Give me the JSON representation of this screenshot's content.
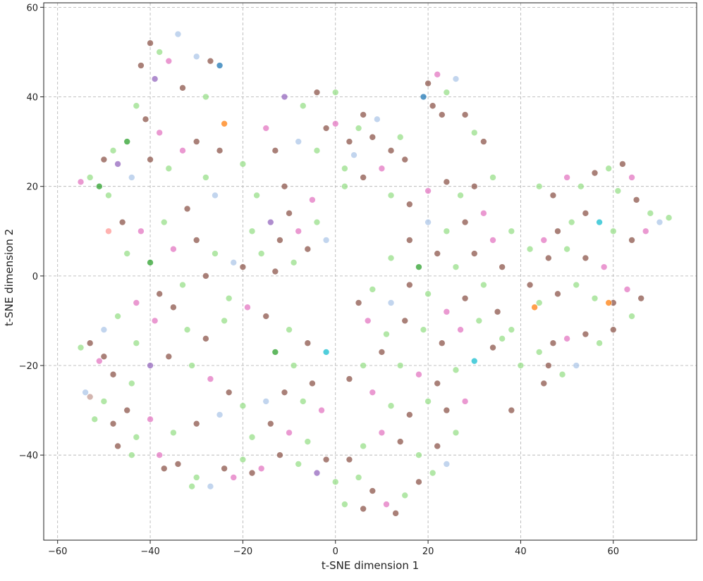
{
  "chart_data": {
    "type": "scatter",
    "title": "",
    "xlabel": "t-SNE dimension 1",
    "ylabel": "t-SNE dimension 2",
    "xlim": [
      -63,
      78
    ],
    "ylim": [
      -59,
      61
    ],
    "xticks": [
      -60,
      -40,
      -20,
      0,
      20,
      40,
      60
    ],
    "yticks": [
      -40,
      -20,
      0,
      20,
      40,
      60
    ],
    "tick_labels_x": [
      "−60",
      "−40",
      "−20",
      "0",
      "20",
      "40",
      "60"
    ],
    "tick_labels_y": [
      "−40",
      "−20",
      "0",
      "20",
      "40",
      "60"
    ],
    "grid": true,
    "legend": "none",
    "point_alpha": 0.75,
    "palette": [
      "#98df8a",
      "#8c564b",
      "#e377c2",
      "#aec7e8",
      "#2ca02c",
      "#9467bd",
      "#17becf",
      "#1f77b4",
      "#ff7f0e",
      "#c49c94",
      "#ff9896",
      "#bcbd22"
    ],
    "approx_point_count": 2400,
    "point_color_index_note": "c = index into palette",
    "points": [
      {
        "x": -40,
        "y": 52,
        "c": 1
      },
      {
        "x": -38,
        "y": 50,
        "c": 0
      },
      {
        "x": -36,
        "y": 48,
        "c": 2
      },
      {
        "x": -34,
        "y": 54,
        "c": 3
      },
      {
        "x": -42,
        "y": 47,
        "c": 1
      },
      {
        "x": -30,
        "y": 49,
        "c": 3
      },
      {
        "x": -27,
        "y": 48,
        "c": 1
      },
      {
        "x": -25,
        "y": 47,
        "c": 7
      },
      {
        "x": -24,
        "y": 34,
        "c": 8
      },
      {
        "x": -39,
        "y": 44,
        "c": 5
      },
      {
        "x": -43,
        "y": 38,
        "c": 0
      },
      {
        "x": -41,
        "y": 35,
        "c": 1
      },
      {
        "x": -38,
        "y": 32,
        "c": 2
      },
      {
        "x": -45,
        "y": 30,
        "c": 4
      },
      {
        "x": -48,
        "y": 28,
        "c": 0
      },
      {
        "x": -50,
        "y": 26,
        "c": 1
      },
      {
        "x": -53,
        "y": 22,
        "c": 0
      },
      {
        "x": -55,
        "y": 21,
        "c": 2
      },
      {
        "x": -51,
        "y": 20,
        "c": 4
      },
      {
        "x": -49,
        "y": 18,
        "c": 0
      },
      {
        "x": -47,
        "y": 25,
        "c": 5
      },
      {
        "x": -44,
        "y": 22,
        "c": 3
      },
      {
        "x": -40,
        "y": 26,
        "c": 1
      },
      {
        "x": -36,
        "y": 24,
        "c": 0
      },
      {
        "x": -33,
        "y": 28,
        "c": 2
      },
      {
        "x": -30,
        "y": 30,
        "c": 1
      },
      {
        "x": -28,
        "y": 22,
        "c": 0
      },
      {
        "x": -26,
        "y": 18,
        "c": 3
      },
      {
        "x": -32,
        "y": 15,
        "c": 1
      },
      {
        "x": -37,
        "y": 12,
        "c": 0
      },
      {
        "x": -42,
        "y": 10,
        "c": 2
      },
      {
        "x": -46,
        "y": 12,
        "c": 1
      },
      {
        "x": -49,
        "y": 10,
        "c": 10
      },
      {
        "x": -45,
        "y": 5,
        "c": 0
      },
      {
        "x": -40,
        "y": 3,
        "c": 4
      },
      {
        "x": -35,
        "y": 6,
        "c": 2
      },
      {
        "x": -30,
        "y": 8,
        "c": 1
      },
      {
        "x": -26,
        "y": 5,
        "c": 0
      },
      {
        "x": -22,
        "y": 3,
        "c": 3
      },
      {
        "x": -28,
        "y": 0,
        "c": 1
      },
      {
        "x": -33,
        "y": -2,
        "c": 0
      },
      {
        "x": -38,
        "y": -4,
        "c": 1
      },
      {
        "x": -43,
        "y": -6,
        "c": 2
      },
      {
        "x": -47,
        "y": -9,
        "c": 0
      },
      {
        "x": -50,
        "y": -12,
        "c": 3
      },
      {
        "x": -53,
        "y": -15,
        "c": 1
      },
      {
        "x": -55,
        "y": -16,
        "c": 0
      },
      {
        "x": -51,
        "y": -19,
        "c": 2
      },
      {
        "x": -48,
        "y": -22,
        "c": 1
      },
      {
        "x": -44,
        "y": -24,
        "c": 0
      },
      {
        "x": -40,
        "y": -20,
        "c": 5
      },
      {
        "x": -36,
        "y": -18,
        "c": 1
      },
      {
        "x": -31,
        "y": -20,
        "c": 0
      },
      {
        "x": -27,
        "y": -23,
        "c": 2
      },
      {
        "x": -23,
        "y": -26,
        "c": 1
      },
      {
        "x": -20,
        "y": -29,
        "c": 0
      },
      {
        "x": -25,
        "y": -31,
        "c": 3
      },
      {
        "x": -30,
        "y": -33,
        "c": 1
      },
      {
        "x": -35,
        "y": -35,
        "c": 0
      },
      {
        "x": -40,
        "y": -32,
        "c": 2
      },
      {
        "x": -45,
        "y": -30,
        "c": 1
      },
      {
        "x": -50,
        "y": -28,
        "c": 0
      },
      {
        "x": -53,
        "y": -27,
        "c": 9
      },
      {
        "x": -48,
        "y": -33,
        "c": 1
      },
      {
        "x": -43,
        "y": -36,
        "c": 0
      },
      {
        "x": -38,
        "y": -40,
        "c": 2
      },
      {
        "x": -34,
        "y": -42,
        "c": 1
      },
      {
        "x": -30,
        "y": -45,
        "c": 0
      },
      {
        "x": -27,
        "y": -47,
        "c": 3
      },
      {
        "x": -24,
        "y": -43,
        "c": 1
      },
      {
        "x": -20,
        "y": -41,
        "c": 0
      },
      {
        "x": -16,
        "y": -43,
        "c": 2
      },
      {
        "x": -12,
        "y": -40,
        "c": 1
      },
      {
        "x": -8,
        "y": -42,
        "c": 0
      },
      {
        "x": -4,
        "y": -44,
        "c": 5
      },
      {
        "x": -2,
        "y": -41,
        "c": 1
      },
      {
        "x": -6,
        "y": -37,
        "c": 0
      },
      {
        "x": -10,
        "y": -35,
        "c": 2
      },
      {
        "x": -14,
        "y": -33,
        "c": 1
      },
      {
        "x": -18,
        "y": -36,
        "c": 0
      },
      {
        "x": -15,
        "y": -28,
        "c": 3
      },
      {
        "x": -11,
        "y": -26,
        "c": 1
      },
      {
        "x": -7,
        "y": -28,
        "c": 0
      },
      {
        "x": -3,
        "y": -30,
        "c": 2
      },
      {
        "x": -5,
        "y": -24,
        "c": 1
      },
      {
        "x": -9,
        "y": -20,
        "c": 0
      },
      {
        "x": -13,
        "y": -17,
        "c": 4
      },
      {
        "x": -6,
        "y": -15,
        "c": 1
      },
      {
        "x": -2,
        "y": -17,
        "c": 6
      },
      {
        "x": -10,
        "y": -12,
        "c": 0
      },
      {
        "x": -15,
        "y": -9,
        "c": 1
      },
      {
        "x": -19,
        "y": -7,
        "c": 2
      },
      {
        "x": -23,
        "y": -5,
        "c": 0
      },
      {
        "x": -20,
        "y": 2,
        "c": 1
      },
      {
        "x": -16,
        "y": 5,
        "c": 0
      },
      {
        "x": -12,
        "y": 8,
        "c": 1
      },
      {
        "x": -8,
        "y": 10,
        "c": 2
      },
      {
        "x": -4,
        "y": 12,
        "c": 0
      },
      {
        "x": -10,
        "y": 14,
        "c": 1
      },
      {
        "x": -14,
        "y": 12,
        "c": 5
      },
      {
        "x": -18,
        "y": 10,
        "c": 0
      },
      {
        "x": -6,
        "y": 6,
        "c": 1
      },
      {
        "x": -2,
        "y": 8,
        "c": 3
      },
      {
        "x": -9,
        "y": 3,
        "c": 0
      },
      {
        "x": -13,
        "y": 1,
        "c": 1
      },
      {
        "x": -17,
        "y": 18,
        "c": 0
      },
      {
        "x": -11,
        "y": 20,
        "c": 1
      },
      {
        "x": -5,
        "y": 17,
        "c": 2
      },
      {
        "x": -20,
        "y": 25,
        "c": 0
      },
      {
        "x": -13,
        "y": 28,
        "c": 1
      },
      {
        "x": -8,
        "y": 30,
        "c": 3
      },
      {
        "x": -4,
        "y": 28,
        "c": 0
      },
      {
        "x": -2,
        "y": 33,
        "c": 1
      },
      {
        "x": -7,
        "y": 38,
        "c": 0
      },
      {
        "x": -11,
        "y": 40,
        "c": 5
      },
      {
        "x": -4,
        "y": 41,
        "c": 1
      },
      {
        "x": 0,
        "y": 41,
        "c": 0
      },
      {
        "x": -15,
        "y": 33,
        "c": 2
      },
      {
        "x": -25,
        "y": 28,
        "c": 1
      },
      {
        "x": -28,
        "y": 40,
        "c": 0
      },
      {
        "x": -33,
        "y": 42,
        "c": 1
      },
      {
        "x": 0,
        "y": 34,
        "c": 2
      },
      {
        "x": 3,
        "y": 30,
        "c": 1
      },
      {
        "x": 5,
        "y": 33,
        "c": 0
      },
      {
        "x": 8,
        "y": 31,
        "c": 1
      },
      {
        "x": 4,
        "y": 27,
        "c": 3
      },
      {
        "x": 2,
        "y": 24,
        "c": 0
      },
      {
        "x": 6,
        "y": 22,
        "c": 1
      },
      {
        "x": 10,
        "y": 24,
        "c": 2
      },
      {
        "x": 12,
        "y": 28,
        "c": 1
      },
      {
        "x": 14,
        "y": 31,
        "c": 0
      },
      {
        "x": 15,
        "y": 26,
        "c": 1
      },
      {
        "x": 9,
        "y": 35,
        "c": 3
      },
      {
        "x": 6,
        "y": 36,
        "c": 1
      },
      {
        "x": 2,
        "y": 20,
        "c": 0
      },
      {
        "x": 20,
        "y": 43,
        "c": 1
      },
      {
        "x": 22,
        "y": 45,
        "c": 2
      },
      {
        "x": 24,
        "y": 41,
        "c": 0
      },
      {
        "x": 21,
        "y": 38,
        "c": 1
      },
      {
        "x": 26,
        "y": 44,
        "c": 3
      },
      {
        "x": 19,
        "y": 40,
        "c": 7
      },
      {
        "x": 23,
        "y": 36,
        "c": 1
      },
      {
        "x": 28,
        "y": 36,
        "c": 1
      },
      {
        "x": 30,
        "y": 32,
        "c": 0
      },
      {
        "x": 32,
        "y": 30,
        "c": 1
      },
      {
        "x": 12,
        "y": 18,
        "c": 0
      },
      {
        "x": 16,
        "y": 16,
        "c": 1
      },
      {
        "x": 20,
        "y": 19,
        "c": 2
      },
      {
        "x": 24,
        "y": 21,
        "c": 1
      },
      {
        "x": 27,
        "y": 18,
        "c": 0
      },
      {
        "x": 30,
        "y": 20,
        "c": 1
      },
      {
        "x": 34,
        "y": 22,
        "c": 0
      },
      {
        "x": 32,
        "y": 14,
        "c": 2
      },
      {
        "x": 28,
        "y": 12,
        "c": 1
      },
      {
        "x": 24,
        "y": 10,
        "c": 0
      },
      {
        "x": 20,
        "y": 12,
        "c": 3
      },
      {
        "x": 16,
        "y": 8,
        "c": 1
      },
      {
        "x": 12,
        "y": 4,
        "c": 0
      },
      {
        "x": 18,
        "y": 2,
        "c": 4
      },
      {
        "x": 22,
        "y": 5,
        "c": 1
      },
      {
        "x": 26,
        "y": 2,
        "c": 0
      },
      {
        "x": 30,
        "y": 5,
        "c": 1
      },
      {
        "x": 34,
        "y": 8,
        "c": 2
      },
      {
        "x": 38,
        "y": 10,
        "c": 0
      },
      {
        "x": 36,
        "y": 2,
        "c": 1
      },
      {
        "x": 32,
        "y": -2,
        "c": 0
      },
      {
        "x": 28,
        "y": -5,
        "c": 1
      },
      {
        "x": 24,
        "y": -8,
        "c": 2
      },
      {
        "x": 20,
        "y": -4,
        "c": 0
      },
      {
        "x": 16,
        "y": -2,
        "c": 1
      },
      {
        "x": 12,
        "y": -6,
        "c": 3
      },
      {
        "x": 8,
        "y": -3,
        "c": 0
      },
      {
        "x": 5,
        "y": -6,
        "c": 1
      },
      {
        "x": 7,
        "y": -10,
        "c": 2
      },
      {
        "x": 11,
        "y": -13,
        "c": 0
      },
      {
        "x": 15,
        "y": -10,
        "c": 1
      },
      {
        "x": 19,
        "y": -12,
        "c": 0
      },
      {
        "x": 23,
        "y": -15,
        "c": 1
      },
      {
        "x": 27,
        "y": -12,
        "c": 2
      },
      {
        "x": 31,
        "y": -10,
        "c": 0
      },
      {
        "x": 35,
        "y": -8,
        "c": 1
      },
      {
        "x": 38,
        "y": -12,
        "c": 0
      },
      {
        "x": 34,
        "y": -16,
        "c": 1
      },
      {
        "x": 30,
        "y": -19,
        "c": 6
      },
      {
        "x": 26,
        "y": -21,
        "c": 0
      },
      {
        "x": 22,
        "y": -24,
        "c": 1
      },
      {
        "x": 18,
        "y": -22,
        "c": 2
      },
      {
        "x": 14,
        "y": -20,
        "c": 0
      },
      {
        "x": 10,
        "y": -17,
        "c": 1
      },
      {
        "x": 6,
        "y": -20,
        "c": 0
      },
      {
        "x": 3,
        "y": -23,
        "c": 1
      },
      {
        "x": 8,
        "y": -26,
        "c": 2
      },
      {
        "x": 12,
        "y": -29,
        "c": 0
      },
      {
        "x": 16,
        "y": -31,
        "c": 1
      },
      {
        "x": 20,
        "y": -28,
        "c": 0
      },
      {
        "x": 24,
        "y": -30,
        "c": 1
      },
      {
        "x": 28,
        "y": -28,
        "c": 2
      },
      {
        "x": 26,
        "y": -35,
        "c": 0
      },
      {
        "x": 22,
        "y": -38,
        "c": 1
      },
      {
        "x": 18,
        "y": -40,
        "c": 0
      },
      {
        "x": 14,
        "y": -37,
        "c": 1
      },
      {
        "x": 10,
        "y": -35,
        "c": 2
      },
      {
        "x": 6,
        "y": -38,
        "c": 0
      },
      {
        "x": 3,
        "y": -41,
        "c": 1
      },
      {
        "x": 5,
        "y": -45,
        "c": 0
      },
      {
        "x": 8,
        "y": -48,
        "c": 1
      },
      {
        "x": 11,
        "y": -51,
        "c": 2
      },
      {
        "x": 13,
        "y": -53,
        "c": 1
      },
      {
        "x": 15,
        "y": -49,
        "c": 0
      },
      {
        "x": 18,
        "y": -46,
        "c": 1
      },
      {
        "x": 21,
        "y": -44,
        "c": 0
      },
      {
        "x": 24,
        "y": -42,
        "c": 3
      },
      {
        "x": 2,
        "y": -51,
        "c": 0
      },
      {
        "x": 6,
        "y": -52,
        "c": 1
      },
      {
        "x": 0,
        "y": -46,
        "c": 0
      },
      {
        "x": 44,
        "y": 20,
        "c": 0
      },
      {
        "x": 47,
        "y": 18,
        "c": 1
      },
      {
        "x": 50,
        "y": 22,
        "c": 2
      },
      {
        "x": 53,
        "y": 20,
        "c": 0
      },
      {
        "x": 56,
        "y": 23,
        "c": 1
      },
      {
        "x": 59,
        "y": 24,
        "c": 0
      },
      {
        "x": 62,
        "y": 25,
        "c": 1
      },
      {
        "x": 64,
        "y": 22,
        "c": 2
      },
      {
        "x": 61,
        "y": 19,
        "c": 0
      },
      {
        "x": 65,
        "y": 17,
        "c": 1
      },
      {
        "x": 68,
        "y": 14,
        "c": 0
      },
      {
        "x": 70,
        "y": 12,
        "c": 3
      },
      {
        "x": 72,
        "y": 13,
        "c": 0
      },
      {
        "x": 67,
        "y": 10,
        "c": 2
      },
      {
        "x": 64,
        "y": 8,
        "c": 1
      },
      {
        "x": 60,
        "y": 10,
        "c": 0
      },
      {
        "x": 57,
        "y": 12,
        "c": 6
      },
      {
        "x": 54,
        "y": 14,
        "c": 1
      },
      {
        "x": 51,
        "y": 12,
        "c": 0
      },
      {
        "x": 48,
        "y": 10,
        "c": 1
      },
      {
        "x": 45,
        "y": 8,
        "c": 2
      },
      {
        "x": 42,
        "y": 6,
        "c": 0
      },
      {
        "x": 46,
        "y": 4,
        "c": 1
      },
      {
        "x": 50,
        "y": 6,
        "c": 0
      },
      {
        "x": 54,
        "y": 4,
        "c": 1
      },
      {
        "x": 58,
        "y": 2,
        "c": 2
      },
      {
        "x": 52,
        "y": -2,
        "c": 0
      },
      {
        "x": 48,
        "y": -4,
        "c": 1
      },
      {
        "x": 44,
        "y": -6,
        "c": 0
      },
      {
        "x": 42,
        "y": -2,
        "c": 1
      },
      {
        "x": 56,
        "y": -5,
        "c": 0
      },
      {
        "x": 60,
        "y": -6,
        "c": 1
      },
      {
        "x": 63,
        "y": -3,
        "c": 2
      },
      {
        "x": 66,
        "y": -5,
        "c": 1
      },
      {
        "x": 64,
        "y": -9,
        "c": 0
      },
      {
        "x": 60,
        "y": -12,
        "c": 1
      },
      {
        "x": 57,
        "y": -15,
        "c": 0
      },
      {
        "x": 54,
        "y": -13,
        "c": 1
      },
      {
        "x": 50,
        "y": -14,
        "c": 2
      },
      {
        "x": 47,
        "y": -15,
        "c": 1
      },
      {
        "x": 44,
        "y": -17,
        "c": 0
      },
      {
        "x": 46,
        "y": -20,
        "c": 1
      },
      {
        "x": 49,
        "y": -22,
        "c": 0
      },
      {
        "x": 52,
        "y": -20,
        "c": 3
      },
      {
        "x": 45,
        "y": -24,
        "c": 1
      },
      {
        "x": 40,
        "y": -20,
        "c": 0
      },
      {
        "x": 38,
        "y": -30,
        "c": 1
      },
      {
        "x": 43,
        "y": -7,
        "c": 8
      },
      {
        "x": 59,
        "y": -6,
        "c": 8
      },
      {
        "x": 36,
        "y": -14,
        "c": 0
      },
      {
        "x": -37,
        "y": -43,
        "c": 1
      },
      {
        "x": -31,
        "y": -47,
        "c": 0
      },
      {
        "x": -22,
        "y": -45,
        "c": 2
      },
      {
        "x": -18,
        "y": -44,
        "c": 1
      },
      {
        "x": -44,
        "y": -40,
        "c": 0
      },
      {
        "x": -47,
        "y": -38,
        "c": 1
      },
      {
        "x": -52,
        "y": -32,
        "c": 0
      },
      {
        "x": -54,
        "y": -26,
        "c": 3
      },
      {
        "x": -50,
        "y": -18,
        "c": 1
      },
      {
        "x": -43,
        "y": -15,
        "c": 0
      },
      {
        "x": -39,
        "y": -10,
        "c": 2
      },
      {
        "x": -35,
        "y": -7,
        "c": 1
      },
      {
        "x": -32,
        "y": -12,
        "c": 0
      },
      {
        "x": -28,
        "y": -14,
        "c": 1
      },
      {
        "x": -24,
        "y": -10,
        "c": 0
      }
    ]
  }
}
